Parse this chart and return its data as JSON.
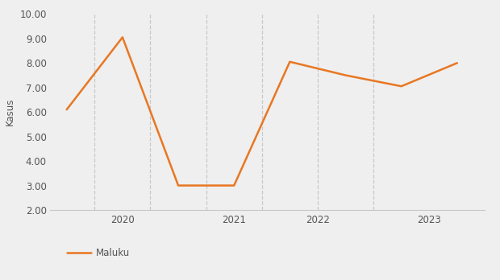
{
  "x": [
    1,
    2,
    3,
    4,
    5,
    6,
    7,
    8
  ],
  "y": [
    6.1,
    9.05,
    3.0,
    3.0,
    8.05,
    7.5,
    7.05,
    8.0
  ],
  "line_color": "#E87722",
  "line_width": 1.8,
  "ylabel": "Kasus",
  "legend_label": "Maluku",
  "ylim": [
    2.0,
    10.0
  ],
  "xlim": [
    0.7,
    8.5
  ],
  "yticks": [
    2.0,
    3.0,
    4.0,
    5.0,
    6.0,
    7.0,
    8.0,
    9.0,
    10.0
  ],
  "vline_positions": [
    1.5,
    2.5,
    3.5,
    4.5,
    5.5,
    6.5
  ],
  "xtick_positions": [
    2.0,
    4.0,
    5.5,
    7.5
  ],
  "xtick_labels": [
    "2020",
    "2021",
    "2022",
    "2023"
  ],
  "grid_color": "#c8c8c8",
  "background_color": "#efefef",
  "text_color": "#555555"
}
